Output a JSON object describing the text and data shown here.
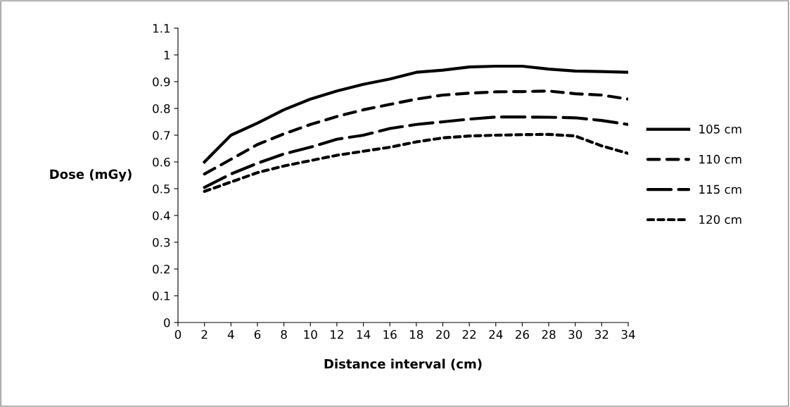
{
  "chart_data": {
    "type": "line",
    "xlabel": "Distance interval (cm)",
    "ylabel": "Dose (mGy)",
    "x": [
      2,
      4,
      6,
      8,
      10,
      12,
      14,
      16,
      18,
      20,
      22,
      24,
      26,
      28,
      30,
      32,
      34
    ],
    "xlim": [
      0,
      34
    ],
    "xticks": [
      0,
      2,
      4,
      6,
      8,
      10,
      12,
      14,
      16,
      18,
      20,
      22,
      24,
      26,
      28,
      30,
      32,
      34
    ],
    "ylim": [
      0,
      1.1
    ],
    "yticks": [
      0,
      0.1,
      0.2,
      0.3,
      0.4,
      0.5,
      0.6,
      0.7,
      0.8,
      0.9,
      1,
      1.1
    ],
    "grid": false,
    "legend": "right",
    "marker": "none",
    "series": [
      {
        "name": "105 cm",
        "color": "#000000",
        "line_style": "solid",
        "values": [
          0.6,
          0.7,
          0.745,
          0.795,
          0.835,
          0.865,
          0.89,
          0.91,
          0.935,
          0.943,
          0.955,
          0.958,
          0.958,
          0.947,
          0.94,
          0.938,
          0.935
        ]
      },
      {
        "name": "110 cm",
        "color": "#000000",
        "line_style": "dashed",
        "values": [
          0.555,
          0.61,
          0.665,
          0.705,
          0.74,
          0.77,
          0.795,
          0.815,
          0.835,
          0.85,
          0.857,
          0.862,
          0.863,
          0.865,
          0.855,
          0.85,
          0.835
        ]
      },
      {
        "name": "115 cm",
        "color": "#000000",
        "line_style": "long dashed",
        "values": [
          0.505,
          0.555,
          0.595,
          0.63,
          0.655,
          0.685,
          0.7,
          0.725,
          0.74,
          0.75,
          0.76,
          0.768,
          0.768,
          0.767,
          0.765,
          0.755,
          0.74
        ]
      },
      {
        "name": "120 cm",
        "color": "#000000",
        "line_style": "dotted",
        "values": [
          0.49,
          0.525,
          0.56,
          0.585,
          0.605,
          0.625,
          0.64,
          0.655,
          0.675,
          0.69,
          0.697,
          0.7,
          0.702,
          0.703,
          0.697,
          0.66,
          0.632
        ]
      }
    ]
  }
}
